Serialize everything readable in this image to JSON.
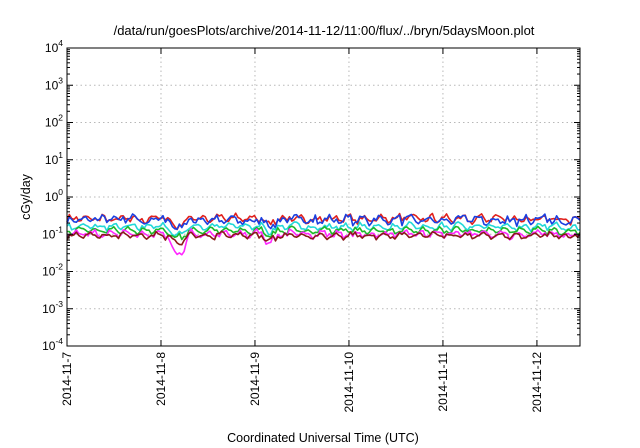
{
  "chart_data": {
    "type": "line",
    "title": "/data/run/goesPlots/archive/2014-11-12/11:00/flux/../bryn/5daysMoon.plot",
    "xlabel": "Coordinated Universal Time (UTC)",
    "ylabel": "cGy/day",
    "yscale": "log",
    "ylim": [
      0.0001,
      10000
    ],
    "y_ticks": [
      {
        "base": "10",
        "exp": "-4"
      },
      {
        "base": "10",
        "exp": "-3"
      },
      {
        "base": "10",
        "exp": "-2"
      },
      {
        "base": "10",
        "exp": "-1"
      },
      {
        "base": "10",
        "exp": "0"
      },
      {
        "base": "10",
        "exp": "1"
      },
      {
        "base": "10",
        "exp": "2"
      },
      {
        "base": "10",
        "exp": "3"
      },
      {
        "base": "10",
        "exp": "4"
      }
    ],
    "x_ticks": [
      "2014-11-7",
      "2014-11-8",
      "2014-11-9",
      "2014-11-10",
      "2014-11-11",
      "2014-11-12"
    ],
    "xlim": [
      "2014-11-07 00:00",
      "2014-11-12 11:00"
    ],
    "grid": true,
    "series": [
      {
        "color": "#e0201c",
        "level": 0.26,
        "noise": 0.22
      },
      {
        "color": "#1a3fe0",
        "level": 0.24,
        "noise": 0.3
      },
      {
        "color": "#23d8d8",
        "level": 0.16,
        "noise": 0.18
      },
      {
        "color": "#1db82a",
        "level": 0.125,
        "noise": 0.16
      },
      {
        "color": "#ff28ff",
        "level": 0.1,
        "noise": 0.2
      },
      {
        "color": "#8a1a1a",
        "level": 0.092,
        "noise": 0.15
      }
    ]
  }
}
